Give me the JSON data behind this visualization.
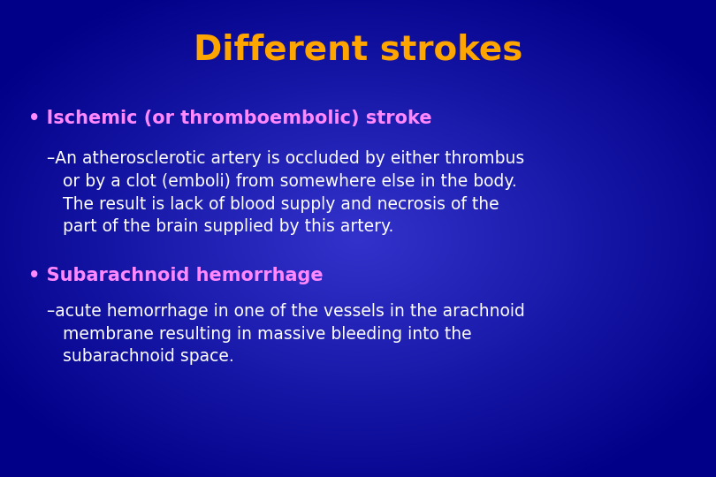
{
  "title": "Different strokes",
  "title_color": "#FFA500",
  "title_fontsize": 28,
  "background_color": "#1a1aaa",
  "bullet1_label": "• Ischemic (or thromboembolic) stroke",
  "bullet1_color": "#FF88FF",
  "bullet1_fontsize": 15,
  "bullet1_body": "–An atherosclerotic artery is occluded by either thrombus\n   or by a clot (emboli) from somewhere else in the body.\n   The result is lack of blood supply and necrosis of the\n   part of the brain supplied by this artery.",
  "bullet1_body_color": "#FFFFFF",
  "bullet1_body_fontsize": 13.5,
  "bullet2_label": "• Subarachnoid hemorrhage",
  "bullet2_color": "#FF88FF",
  "bullet2_fontsize": 15,
  "bullet2_body": "–acute hemorrhage in one of the vessels in the arachnoid\n   membrane resulting in massive bleeding into the\n   subarachnoid space.",
  "bullet2_body_color": "#FFFFFF",
  "bullet2_body_fontsize": 13.5,
  "figsize": [
    8.1,
    5.4
  ],
  "dpi": 100
}
